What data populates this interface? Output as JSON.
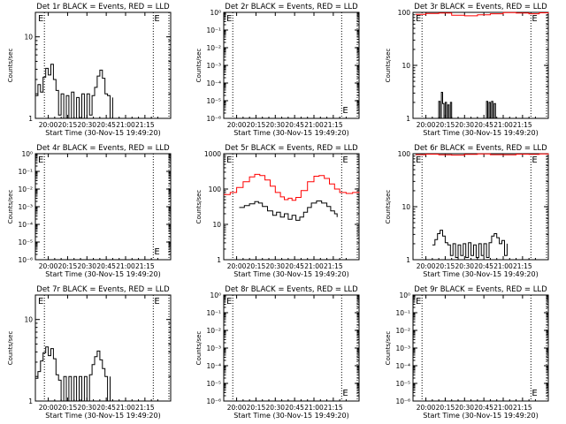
{
  "chart_data": [
    {
      "type": "line",
      "title": "Det 1r BLACK = Events, RED = LLD",
      "xlabel": "Start Time (30-Nov-15 19:49:20)",
      "ylabel": "Counts/sec",
      "x_tick_labels": [
        "20:00",
        "20:15",
        "20:30",
        "20:45",
        "21:00",
        "21:15"
      ],
      "y_tick_labels": [
        "1",
        "10"
      ],
      "xlim": [
        -10,
        95
      ],
      "ylim_log10": [
        0,
        1.3
      ],
      "marker": {
        "label": "E",
        "x": 85
      },
      "dotted_lines_x": [
        -3,
        81.5
      ],
      "series": [
        {
          "name": "Events",
          "color": "#000000",
          "points": [
            [
              -10,
              1.9
            ],
            [
              -8,
              2.6
            ],
            [
              -6,
              2.1
            ],
            [
              -4,
              3.2
            ],
            [
              -2,
              4.1
            ],
            [
              0,
              3.4
            ],
            [
              2,
              4.6
            ],
            [
              4,
              3.0
            ],
            [
              6,
              2.2
            ],
            [
              8,
              1.1
            ],
            [
              10,
              2.0
            ],
            [
              12,
              1.0
            ],
            [
              14,
              1.9
            ],
            [
              16,
              1.0
            ],
            [
              18,
              2.1
            ],
            [
              20,
              1.0
            ],
            [
              22,
              1.8
            ],
            [
              24,
              1.0
            ],
            [
              26,
              2.0
            ],
            [
              28,
              1.0
            ],
            [
              30,
              2.0
            ],
            [
              32,
              1.1
            ],
            [
              34,
              1.9
            ],
            [
              36,
              2.4
            ],
            [
              38,
              3.3
            ],
            [
              40,
              3.9
            ],
            [
              42,
              3.1
            ],
            [
              44,
              2.0
            ],
            [
              46,
              1.9
            ],
            [
              48,
              1.0
            ],
            [
              50,
              1.8
            ]
          ]
        }
      ]
    },
    {
      "type": "line",
      "title": "Det 2r BLACK = Events, RED = LLD",
      "xlabel": "Start Time (30-Nov-15 19:49:20)",
      "ylabel": "Counts/sec",
      "x_tick_labels": [
        "20:00",
        "20:15",
        "20:30",
        "20:45",
        "21:00",
        "21:15"
      ],
      "y_tick_labels": [
        "10⁻⁶",
        "10⁻⁵",
        "10⁻⁴",
        "10⁻³",
        "10⁻²",
        "10⁻¹",
        "10⁰"
      ],
      "xlim": [
        -10,
        95
      ],
      "ylim_log10": [
        -6,
        0
      ],
      "marker": {
        "label": "E",
        "x": 85
      },
      "dotted_lines_x": [
        -3,
        81.5
      ],
      "series": []
    },
    {
      "type": "line",
      "title": "Det 3r BLACK = Events, RED = LLD",
      "xlabel": "Start Time (30-Nov-15 19:49:20)",
      "ylabel": "Counts/sec",
      "x_tick_labels": [
        "20:00",
        "20:15",
        "20:30",
        "20:45",
        "21:00",
        "21:15"
      ],
      "y_tick_labels": [
        "1",
        "10",
        "100"
      ],
      "xlim": [
        -10,
        95
      ],
      "ylim_log10": [
        0,
        2.0
      ],
      "marker": {
        "label": "E",
        "x": 85
      },
      "dotted_lines_x": [
        -3,
        81.5
      ],
      "series": [
        {
          "name": "LLD",
          "color": "#ff0000",
          "points": [
            [
              -8,
              92
            ],
            [
              0,
              95
            ],
            [
              10,
              97
            ],
            [
              20,
              88
            ],
            [
              30,
              86
            ],
            [
              40,
              90
            ],
            [
              50,
              94
            ],
            [
              60,
              99
            ],
            [
              70,
              97
            ],
            [
              80,
              94
            ],
            [
              88,
              98
            ],
            [
              95,
              96
            ]
          ]
        },
        {
          "name": "Events",
          "color": "#000000",
          "points": [
            [
              9,
              1.0
            ],
            [
              10,
              2.1
            ],
            [
              11,
              1.0
            ],
            [
              12,
              3.1
            ],
            [
              13,
              1.9
            ],
            [
              14,
              1.0
            ],
            [
              15,
              2.0
            ],
            [
              16,
              1.0
            ],
            [
              17,
              1.8
            ],
            [
              18,
              1.0
            ],
            [
              19,
              2.0
            ],
            [
              20,
              1.0
            ],
            [
              46,
              1.0
            ],
            [
              47,
              2.1
            ],
            [
              48,
              1.0
            ],
            [
              49,
              2.0
            ],
            [
              50,
              1.0
            ],
            [
              51,
              2.1
            ],
            [
              52,
              1.0
            ],
            [
              53,
              1.9
            ],
            [
              54,
              1.0
            ]
          ]
        }
      ]
    },
    {
      "type": "line",
      "title": "Det 4r BLACK = Events, RED = LLD",
      "xlabel": "Start Time (30-Nov-15 19:49:20)",
      "ylabel": "Counts/sec",
      "x_tick_labels": [
        "20:00",
        "20:15",
        "20:30",
        "20:45",
        "21:00",
        "21:15"
      ],
      "y_tick_labels": [
        "10⁻⁶",
        "10⁻⁵",
        "10⁻⁴",
        "10⁻³",
        "10⁻²",
        "10⁻¹",
        "10⁰"
      ],
      "xlim": [
        -10,
        95
      ],
      "ylim_log10": [
        -6,
        0
      ],
      "marker": {
        "label": "E",
        "x": 85
      },
      "dotted_lines_x": [
        -3,
        81.5
      ],
      "series": []
    },
    {
      "type": "line",
      "title": "Det 5r BLACK = Events, RED = LLD",
      "xlabel": "Start Time (30-Nov-15 19:49:20)",
      "ylabel": "Counts/sec",
      "x_tick_labels": [
        "20:00",
        "20:15",
        "20:30",
        "20:45",
        "21:00",
        "21:15"
      ],
      "y_tick_labels": [
        "1",
        "10",
        "100",
        "1000"
      ],
      "xlim": [
        -10,
        95
      ],
      "ylim_log10": [
        0,
        3.0
      ],
      "marker": {
        "label": "E",
        "x": 85
      },
      "dotted_lines_x": [
        -3,
        81.5
      ],
      "series": [
        {
          "name": "LLD",
          "color": "#ff0000",
          "points": [
            [
              -10,
              70
            ],
            [
              -5,
              80
            ],
            [
              0,
              110
            ],
            [
              5,
              160
            ],
            [
              10,
              220
            ],
            [
              14,
              260
            ],
            [
              18,
              240
            ],
            [
              22,
              180
            ],
            [
              26,
              120
            ],
            [
              30,
              80
            ],
            [
              34,
              60
            ],
            [
              37,
              50
            ],
            [
              40,
              55
            ],
            [
              43,
              48
            ],
            [
              46,
              58
            ],
            [
              50,
              90
            ],
            [
              55,
              160
            ],
            [
              60,
              230
            ],
            [
              64,
              240
            ],
            [
              68,
              200
            ],
            [
              72,
              140
            ],
            [
              76,
              100
            ],
            [
              80,
              80
            ],
            [
              85,
              75
            ],
            [
              90,
              80
            ],
            [
              95,
              78
            ]
          ]
        },
        {
          "name": "Events",
          "color": "#000000",
          "points": [
            [
              2,
              30
            ],
            [
              6,
              34
            ],
            [
              10,
              38
            ],
            [
              14,
              44
            ],
            [
              17,
              40
            ],
            [
              20,
              32
            ],
            [
              24,
              24
            ],
            [
              28,
              18
            ],
            [
              31,
              22
            ],
            [
              34,
              16
            ],
            [
              37,
              20
            ],
            [
              40,
              14
            ],
            [
              43,
              18
            ],
            [
              46,
              13
            ],
            [
              49,
              16
            ],
            [
              52,
              22
            ],
            [
              55,
              30
            ],
            [
              58,
              40
            ],
            [
              62,
              46
            ],
            [
              66,
              40
            ],
            [
              70,
              32
            ],
            [
              73,
              24
            ],
            [
              76,
              20
            ],
            [
              78,
              16
            ]
          ]
        }
      ]
    },
    {
      "type": "line",
      "title": "Det 6r BLACK = Events, RED = LLD",
      "xlabel": "Start Time (30-Nov-15 19:49:20)",
      "ylabel": "Counts/sec",
      "x_tick_labels": [
        "20:00",
        "20:15",
        "20:30",
        "20:45",
        "21:00",
        "21:15"
      ],
      "y_tick_labels": [
        "1",
        "10",
        "100"
      ],
      "xlim": [
        -10,
        95
      ],
      "ylim_log10": [
        0,
        2.0
      ],
      "marker": {
        "label": "E",
        "x": 85
      },
      "dotted_lines_x": [
        -3,
        81.5
      ],
      "series": [
        {
          "name": "LLD",
          "color": "#ff0000",
          "points": [
            [
              -8,
              96
            ],
            [
              0,
              98
            ],
            [
              10,
              95
            ],
            [
              20,
              94
            ],
            [
              30,
              97
            ],
            [
              40,
              99
            ],
            [
              50,
              96
            ],
            [
              60,
              95
            ],
            [
              70,
              98
            ],
            [
              80,
              97
            ],
            [
              88,
              99
            ],
            [
              95,
              96
            ]
          ]
        },
        {
          "name": "Events",
          "color": "#000000",
          "points": [
            [
              5,
              1.9
            ],
            [
              7,
              2.4
            ],
            [
              9,
              3.1
            ],
            [
              11,
              3.6
            ],
            [
              13,
              2.8
            ],
            [
              15,
              2.1
            ],
            [
              17,
              1.9
            ],
            [
              19,
              1.2
            ],
            [
              21,
              2.0
            ],
            [
              23,
              1.1
            ],
            [
              25,
              1.9
            ],
            [
              27,
              1.2
            ],
            [
              29,
              2.0
            ],
            [
              31,
              1.1
            ],
            [
              33,
              2.1
            ],
            [
              35,
              1.2
            ],
            [
              37,
              1.9
            ],
            [
              39,
              1.1
            ],
            [
              41,
              2.0
            ],
            [
              43,
              1.2
            ],
            [
              45,
              2.0
            ],
            [
              47,
              1.1
            ],
            [
              49,
              2.1
            ],
            [
              51,
              2.8
            ],
            [
              53,
              3.1
            ],
            [
              55,
              2.6
            ],
            [
              57,
              2.0
            ],
            [
              59,
              2.3
            ],
            [
              61,
              1.2
            ],
            [
              63,
              2.0
            ]
          ]
        }
      ]
    },
    {
      "type": "line",
      "title": "Det 7r BLACK = Events, RED = LLD",
      "xlabel": "Start Time (30-Nov-15 19:49:20)",
      "ylabel": "Counts/sec",
      "x_tick_labels": [
        "20:00",
        "20:15",
        "20:30",
        "20:45",
        "21:00",
        "21:15"
      ],
      "y_tick_labels": [
        "1",
        "10"
      ],
      "xlim": [
        -10,
        95
      ],
      "ylim_log10": [
        0,
        1.3
      ],
      "marker": {
        "label": "E",
        "x": 85
      },
      "dotted_lines_x": [
        -3,
        81.5
      ],
      "series": [
        {
          "name": "Events",
          "color": "#000000",
          "points": [
            [
              -10,
              1.9
            ],
            [
              -8,
              2.3
            ],
            [
              -6,
              3.1
            ],
            [
              -4,
              3.9
            ],
            [
              -2,
              4.6
            ],
            [
              0,
              3.6
            ],
            [
              2,
              4.4
            ],
            [
              4,
              3.3
            ],
            [
              6,
              2.1
            ],
            [
              8,
              1.8
            ],
            [
              10,
              1.0
            ],
            [
              12,
              2.0
            ],
            [
              14,
              1.0
            ],
            [
              16,
              2.0
            ],
            [
              18,
              1.0
            ],
            [
              20,
              2.0
            ],
            [
              22,
              1.0
            ],
            [
              24,
              2.0
            ],
            [
              26,
              1.0
            ],
            [
              28,
              2.0
            ],
            [
              30,
              1.0
            ],
            [
              32,
              2.1
            ],
            [
              34,
              2.8
            ],
            [
              36,
              3.5
            ],
            [
              38,
              4.1
            ],
            [
              40,
              3.2
            ],
            [
              42,
              2.5
            ],
            [
              44,
              2.0
            ],
            [
              46,
              1.0
            ],
            [
              48,
              2.0
            ]
          ]
        }
      ]
    },
    {
      "type": "line",
      "title": "Det 8r BLACK = Events, RED = LLD",
      "xlabel": "Start Time (30-Nov-15 19:49:20)",
      "ylabel": "Counts/sec",
      "x_tick_labels": [
        "20:00",
        "20:15",
        "20:30",
        "20:45",
        "21:00",
        "21:15"
      ],
      "y_tick_labels": [
        "10⁻⁶",
        "10⁻⁵",
        "10⁻⁴",
        "10⁻³",
        "10⁻²",
        "10⁻¹",
        "10⁰"
      ],
      "xlim": [
        -10,
        95
      ],
      "ylim_log10": [
        -6,
        0
      ],
      "marker": {
        "label": "E",
        "x": 85
      },
      "dotted_lines_x": [
        -3,
        81.5
      ],
      "series": []
    },
    {
      "type": "line",
      "title": "Det 9r BLACK = Events, RED = LLD",
      "xlabel": "Start Time (30-Nov-15 19:49:20)",
      "ylabel": "Counts/sec",
      "x_tick_labels": [
        "20:00",
        "20:15",
        "20:30",
        "20:45",
        "21:00",
        "21:15"
      ],
      "y_tick_labels": [
        "10⁻⁶",
        "10⁻⁵",
        "10⁻⁴",
        "10⁻³",
        "10⁻²",
        "10⁻¹",
        "10⁰"
      ],
      "xlim": [
        -10,
        95
      ],
      "ylim_log10": [
        -6,
        0
      ],
      "marker": {
        "label": "E",
        "x": 85
      },
      "dotted_lines_x": [
        -3,
        81.5
      ],
      "series": []
    }
  ]
}
